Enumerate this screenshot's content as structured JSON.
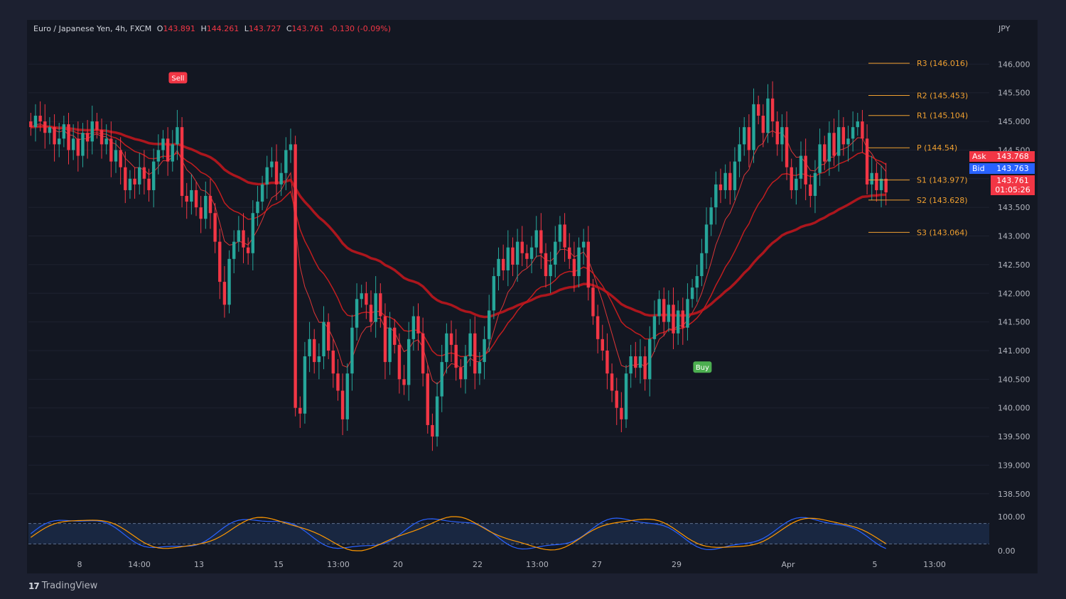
{
  "header": {
    "symbol": "Euro / Japanese Yen, 4h, FXCM",
    "open_label": "O",
    "open": "143.891",
    "high_label": "H",
    "high": "144.261",
    "low_label": "L",
    "low": "143.727",
    "close_label": "C",
    "close": "143.761",
    "change": "-0.130 (-0.09%)"
  },
  "currency": "JPY",
  "quote": {
    "ask_label": "Ask",
    "ask": "143.768",
    "bid_label": "Bid",
    "bid": "143.763",
    "last": "143.761",
    "countdown": "01:05:26"
  },
  "branding": {
    "logo_mark": "17",
    "logo_text": "TradingView"
  },
  "colors": {
    "up": "#26a69a",
    "down": "#f23645",
    "bg": "#131722",
    "pivot": "#f0a030",
    "osc_blue": "#2962ff",
    "osc_orange": "#ff9800"
  },
  "chart_data": {
    "type": "candlestick",
    "x_ticks": [
      "8",
      "14:00",
      "13",
      "15",
      "13:00",
      "20",
      "22",
      "13:00",
      "27",
      "29",
      "Apr",
      "5",
      "13:00"
    ],
    "y_ticks": [
      146.0,
      145.5,
      145.0,
      144.5,
      144.0,
      143.5,
      143.0,
      142.5,
      142.0,
      141.5,
      141.0,
      140.5,
      140.0,
      139.5,
      139.0,
      138.5
    ],
    "y_tick_labels": [
      "146.000",
      "145.500",
      "145.000",
      "144.500",
      "144.000",
      "143.500",
      "143.000",
      "142.500",
      "142.000",
      "141.500",
      "141.000",
      "140.500",
      "140.000",
      "139.500",
      "139.000",
      "138.500"
    ],
    "ylim": [
      138.2,
      146.5
    ],
    "pivots": [
      {
        "name": "R3",
        "label": "R3 (146.016)",
        "value": 146.016
      },
      {
        "name": "R2",
        "label": "R2 (145.453)",
        "value": 145.453
      },
      {
        "name": "R1",
        "label": "R1 (145.104)",
        "value": 145.104
      },
      {
        "name": "P",
        "label": "P (144.54)",
        "value": 144.54
      },
      {
        "name": "S1",
        "label": "S1 (143.977)",
        "value": 143.977
      },
      {
        "name": "S2",
        "label": "S2 (143.628)",
        "value": 143.628
      },
      {
        "name": "S3",
        "label": "S3 (143.064)",
        "value": 143.064
      }
    ],
    "signals": [
      {
        "label": "Sell",
        "index": 31,
        "price": 145.75
      },
      {
        "label": "Buy",
        "index": 142,
        "price": 140.7
      }
    ],
    "close_series": [
      144.9,
      145.1,
      145.0,
      144.8,
      144.9,
      144.6,
      144.7,
      144.95,
      144.5,
      144.7,
      144.4,
      144.8,
      144.65,
      145.0,
      144.85,
      144.6,
      144.7,
      144.3,
      144.5,
      144.2,
      143.8,
      144.0,
      143.9,
      144.2,
      144.0,
      143.8,
      144.3,
      144.5,
      144.7,
      144.3,
      144.6,
      144.9,
      143.7,
      143.6,
      143.8,
      143.5,
      143.3,
      143.7,
      143.4,
      142.9,
      142.2,
      141.8,
      142.6,
      142.9,
      143.1,
      142.8,
      142.7,
      143.4,
      143.6,
      143.9,
      144.2,
      144.3,
      143.9,
      144.1,
      144.5,
      144.6,
      140.0,
      139.9,
      140.9,
      141.2,
      140.8,
      140.9,
      141.5,
      141.0,
      140.6,
      140.3,
      139.8,
      140.6,
      141.4,
      141.9,
      142.0,
      141.8,
      141.5,
      142.0,
      141.6,
      140.8,
      141.4,
      141.1,
      140.5,
      140.4,
      141.2,
      141.6,
      141.3,
      140.6,
      139.7,
      139.5,
      140.2,
      140.8,
      141.3,
      141.1,
      140.7,
      140.5,
      140.9,
      141.3,
      140.6,
      140.8,
      141.2,
      141.7,
      142.3,
      142.6,
      142.4,
      142.8,
      142.5,
      142.9,
      142.7,
      142.6,
      142.8,
      143.1,
      142.7,
      142.3,
      142.5,
      142.9,
      143.2,
      142.8,
      142.6,
      142.3,
      142.8,
      142.9,
      142.1,
      141.6,
      141.2,
      141.0,
      140.6,
      140.3,
      140.0,
      139.8,
      140.6,
      140.9,
      140.7,
      140.9,
      140.5,
      141.2,
      141.6,
      141.9,
      141.5,
      141.8,
      141.3,
      141.7,
      141.4,
      141.9,
      142.1,
      142.3,
      142.7,
      143.2,
      143.5,
      143.9,
      143.8,
      144.1,
      143.8,
      144.3,
      144.6,
      144.9,
      144.5,
      145.3,
      145.1,
      144.8,
      145.4,
      145.0,
      144.6,
      144.9,
      144.2,
      143.8,
      144.0,
      144.4,
      143.9,
      143.7,
      144.1,
      144.6,
      144.3,
      144.8,
      144.4,
      144.9,
      144.6,
      144.7,
      144.9,
      145.0,
      144.7,
      143.9,
      144.1,
      143.8,
      144.0,
      143.761
    ],
    "oscillator": {
      "ylim": [
        0,
        100
      ],
      "y_tick_labels": [
        "100.00",
        "0.00"
      ],
      "band": [
        20,
        80
      ]
    }
  }
}
